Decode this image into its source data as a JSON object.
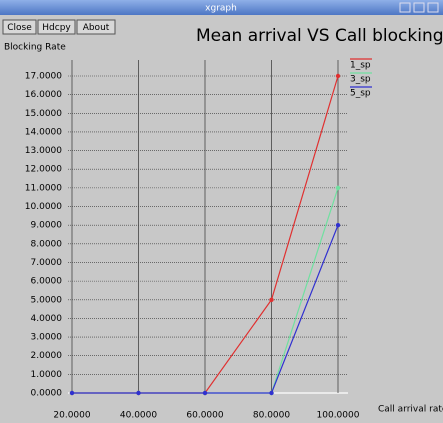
{
  "window": {
    "title": "xgraph",
    "buttons": [
      "Close",
      "Hdcpy",
      "About"
    ]
  },
  "chart_data": {
    "type": "line",
    "title": "Mean arrival VS Call blocking",
    "y_label": "Blocking Rate",
    "x_label": "Call arrival rate",
    "x": [
      20,
      40,
      60,
      80,
      100
    ],
    "series": [
      {
        "name": "1_sp",
        "color": "#e03030",
        "values": [
          0,
          0,
          0,
          5,
          17
        ]
      },
      {
        "name": "3_sp",
        "color": "#70e0a0",
        "values": [
          0,
          0,
          0,
          0,
          11
        ]
      },
      {
        "name": "5_sp",
        "color": "#3030d0",
        "values": [
          0,
          0,
          0,
          0,
          9
        ]
      }
    ],
    "xlim": [
      20,
      100
    ],
    "xticks": [
      {
        "value": 20,
        "label": "20.0000"
      },
      {
        "value": 40,
        "label": "40.0000"
      },
      {
        "value": 60,
        "label": "60.0000"
      },
      {
        "value": 80,
        "label": "80.0000"
      },
      {
        "value": 100,
        "label": "100.0000"
      }
    ],
    "ylim": [
      0,
      17
    ],
    "yticks": [
      {
        "value": 0,
        "label": "0.0000"
      },
      {
        "value": 1,
        "label": "1.0000"
      },
      {
        "value": 2,
        "label": "2.0000"
      },
      {
        "value": 3,
        "label": "3.0000"
      },
      {
        "value": 4,
        "label": "4.0000"
      },
      {
        "value": 5,
        "label": "5.0000"
      },
      {
        "value": 6,
        "label": "6.0000"
      },
      {
        "value": 7,
        "label": "7.0000"
      },
      {
        "value": 8,
        "label": "8.0000"
      },
      {
        "value": 9,
        "label": "9.0000"
      },
      {
        "value": 10,
        "label": "10.0000"
      },
      {
        "value": 11,
        "label": "11.0000"
      },
      {
        "value": 12,
        "label": "12.0000"
      },
      {
        "value": 13,
        "label": "13.0000"
      },
      {
        "value": 14,
        "label": "14.0000"
      },
      {
        "value": 15,
        "label": "15.0000"
      },
      {
        "value": 16,
        "label": "16.0000"
      },
      {
        "value": 17,
        "label": "17.0000"
      }
    ],
    "grid": true,
    "legend": "top-right"
  }
}
